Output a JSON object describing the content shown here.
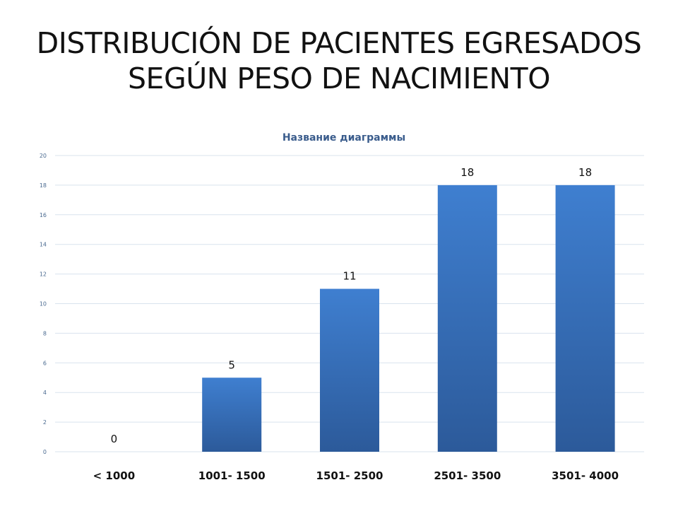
{
  "slide": {
    "title_line1": "DISTRIBUCIÓN DE PACIENTES EGRESADOS",
    "title_line2": "SEGÚN PESO DE NACIMIENTO"
  },
  "chart_data": {
    "type": "bar",
    "title": "Название диаграммы",
    "categories": [
      "< 1000",
      "1001- 1500",
      "1501- 2500",
      "2501- 3500",
      "3501- 4000"
    ],
    "series": [
      {
        "values": [
          0,
          5,
          11,
          18,
          18
        ]
      }
    ],
    "xlabel": "",
    "ylabel": "",
    "ylim": [
      0,
      20
    ],
    "yticks": [
      0,
      2,
      4,
      6,
      8,
      10,
      12,
      14,
      16,
      18,
      20
    ],
    "grid": true,
    "legend": "none",
    "data_labels": true,
    "colors": {
      "bar_top": "#3f7fd0",
      "bar_bottom": "#2c5a9a",
      "grid": "#d9e3ee"
    }
  }
}
